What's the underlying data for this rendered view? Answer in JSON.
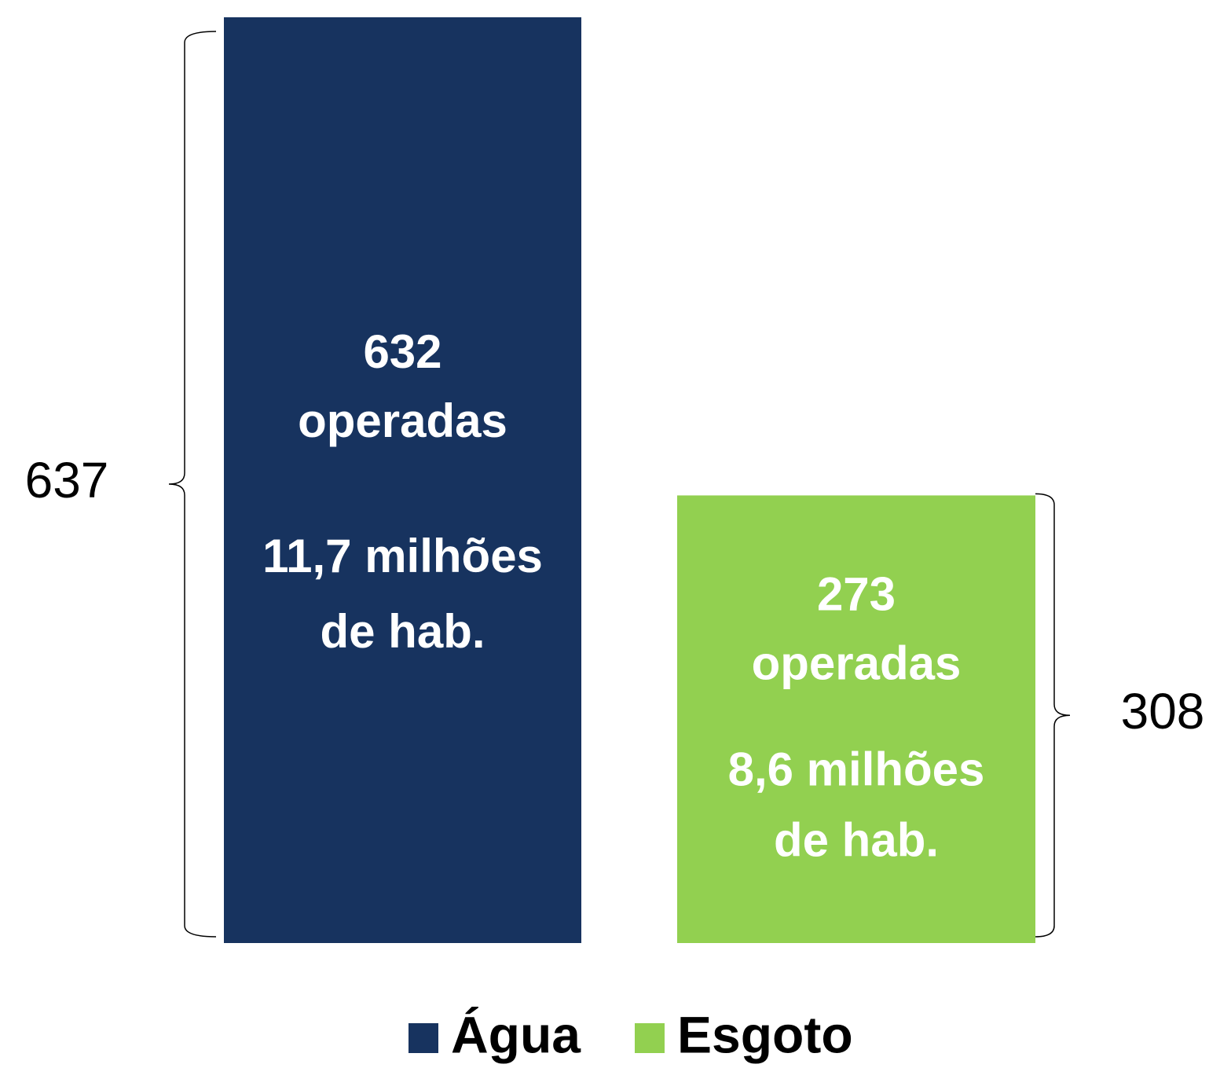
{
  "chart_data": {
    "type": "bar",
    "categories": [
      "Água",
      "Esgoto"
    ],
    "values": [
      637,
      308
    ],
    "colors": [
      "#17335f",
      "#92d050"
    ],
    "inner_labels": [
      [
        "632",
        "operadas",
        "11,7 milhões",
        "de hab."
      ],
      [
        "273",
        "operadas",
        "8,6 milhões",
        "de hab."
      ]
    ],
    "legend": true
  }
}
